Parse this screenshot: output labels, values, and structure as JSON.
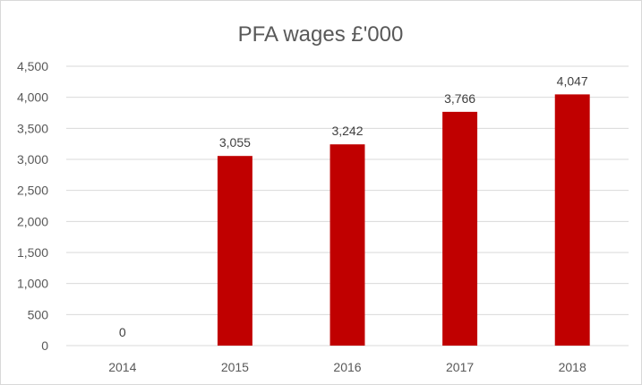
{
  "chart_data": {
    "type": "bar",
    "title": "PFA wages £'000",
    "xlabel": "",
    "ylabel": "",
    "categories": [
      "2014",
      "2015",
      "2016",
      "2017",
      "2018"
    ],
    "values": [
      0,
      3055,
      3242,
      3766,
      4047
    ],
    "data_labels": [
      "0",
      "3,055",
      "3,242",
      "3,766",
      "4,047"
    ],
    "ylim": [
      0,
      4500
    ],
    "y_ticks": [
      0,
      500,
      1000,
      1500,
      2000,
      2500,
      3000,
      3500,
      4000,
      4500
    ],
    "y_tick_labels": [
      "0",
      "500",
      "1,000",
      "1,500",
      "2,000",
      "2,500",
      "3,000",
      "3,500",
      "4,000",
      "4,500"
    ],
    "grid": true,
    "legend": "none",
    "bar_color": "#c00000",
    "grid_color": "#d9d9d9",
    "text_color": "#595959"
  }
}
